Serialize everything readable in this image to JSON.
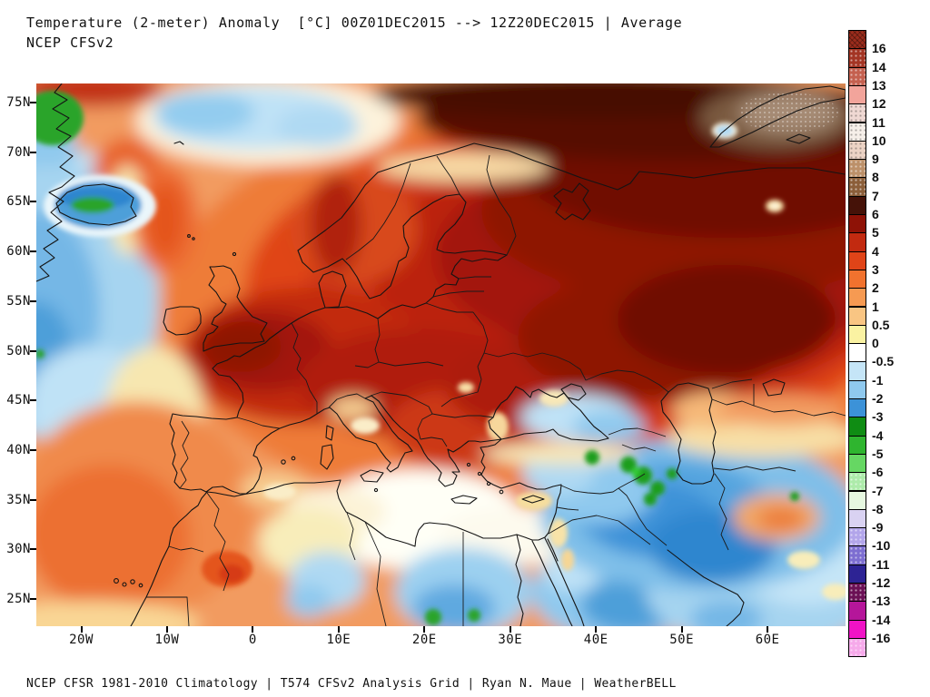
{
  "header": {
    "title_line1": "Temperature (2-meter) Anomaly  [°C] 00Z01DEC2015 --> 12Z20DEC2015 | Average",
    "title_line2": "NCEP CFSv2"
  },
  "footer": {
    "credit": "NCEP CFSR 1981-2010 Climatology | T574 CFSv2 Analysis Grid | Ryan N. Maue | WeatherBELL"
  },
  "axes": {
    "lat_ticks": [
      "75N",
      "70N",
      "65N",
      "60N",
      "55N",
      "50N",
      "45N",
      "40N",
      "35N",
      "30N",
      "25N"
    ],
    "lon_ticks": [
      "20W",
      "10W",
      "0",
      "10E",
      "20E",
      "30E",
      "40E",
      "50E",
      "60E"
    ]
  },
  "colorbar": {
    "units": "°C",
    "cells": [
      {
        "color": "#9B2C1C",
        "texture": "hatch",
        "label": "16"
      },
      {
        "color": "#A33524",
        "texture": "dots",
        "label": "14"
      },
      {
        "color": "#C4604F",
        "texture": "dots",
        "label": "13"
      },
      {
        "color": "#F2A49B",
        "texture": "none",
        "label": "12"
      },
      {
        "color": "#EFD8D3",
        "texture": "dots-dark",
        "label": "11"
      },
      {
        "color": "#F6EFE9",
        "texture": "dots-dark",
        "label": "10"
      },
      {
        "color": "#ECD3C5",
        "texture": "dots-dark",
        "label": "9"
      },
      {
        "color": "#BC9069",
        "texture": "dots",
        "label": "8"
      },
      {
        "color": "#8B5E39",
        "texture": "dots",
        "label": "7"
      },
      {
        "color": "#451208",
        "texture": "none",
        "label": "6"
      },
      {
        "color": "#8E1206",
        "texture": "none",
        "label": "5"
      },
      {
        "color": "#C22A10",
        "texture": "none",
        "label": "4"
      },
      {
        "color": "#E04418",
        "texture": "none",
        "label": "3"
      },
      {
        "color": "#F1722E",
        "texture": "none",
        "label": "2"
      },
      {
        "color": "#F69A52",
        "texture": "none",
        "label": "1"
      },
      {
        "color": "#F9C583",
        "texture": "none",
        "label": "0.5"
      },
      {
        "color": "#FAF2A2",
        "texture": "none",
        "label": "0"
      },
      {
        "color": "#FFFFFF",
        "texture": "none",
        "label": "-0.5"
      },
      {
        "color": "#C5E5F7",
        "texture": "none",
        "label": "-1"
      },
      {
        "color": "#8FC9EE",
        "texture": "none",
        "label": "-2"
      },
      {
        "color": "#3C92D8",
        "texture": "none",
        "label": "-3"
      },
      {
        "color": "#0F8C13",
        "texture": "none",
        "label": "-4"
      },
      {
        "color": "#2FB52F",
        "texture": "none",
        "label": "-5"
      },
      {
        "color": "#66D763",
        "texture": "none",
        "label": "-6"
      },
      {
        "color": "#ADEBAA",
        "texture": "dots",
        "label": "-7"
      },
      {
        "color": "#E6F8E0",
        "texture": "none",
        "label": "-8"
      },
      {
        "color": "#D9D2F2",
        "texture": "none",
        "label": "-9"
      },
      {
        "color": "#B2A5EA",
        "texture": "dots",
        "label": "-10"
      },
      {
        "color": "#7D6ED1",
        "texture": "dots",
        "label": "-11"
      },
      {
        "color": "#2D2394",
        "texture": "none",
        "label": "-12"
      },
      {
        "color": "#6B1055",
        "texture": "dots",
        "label": "-13"
      },
      {
        "color": "#B5169A",
        "texture": "none",
        "label": "-14"
      },
      {
        "color": "#F013C6",
        "texture": "none",
        "label": "-16"
      },
      {
        "color": "#F6A9EA",
        "texture": "dots",
        "label": null
      }
    ]
  }
}
